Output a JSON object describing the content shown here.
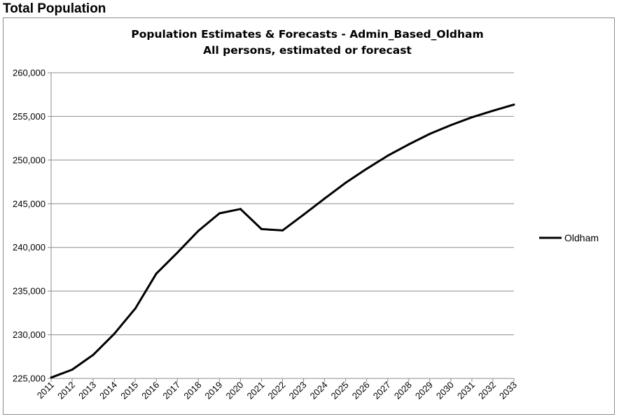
{
  "page": {
    "heading": "Total Population"
  },
  "chart_data": {
    "type": "line",
    "title": "Population  Estimates & Forecasts -  Admin_Based_Oldham",
    "subtitle": "All persons, estimated or forecast",
    "xlabel": "",
    "ylabel": "",
    "x": [
      "2011",
      "2012",
      "2013",
      "2014",
      "2015",
      "2016",
      "2017",
      "2018",
      "2019",
      "2020",
      "2021",
      "2022",
      "2023",
      "2024",
      "2025",
      "2026",
      "2027",
      "2028",
      "2029",
      "2030",
      "2031",
      "2032",
      "2033"
    ],
    "series": [
      {
        "name": "Oldham",
        "color": "#000000",
        "values": [
          225100,
          226000,
          227700,
          230100,
          233000,
          237000,
          239400,
          241900,
          243900,
          244400,
          242100,
          241950,
          243750,
          245600,
          247400,
          249000,
          250500,
          251800,
          253000,
          254000,
          254900,
          255650,
          256350
        ]
      }
    ],
    "ylim": [
      225000,
      260000
    ],
    "yticks": [
      225000,
      230000,
      235000,
      240000,
      245000,
      250000,
      255000,
      260000
    ],
    "ytick_labels": [
      "225,000",
      "230,000",
      "235,000",
      "240,000",
      "245,000",
      "250,000",
      "255,000",
      "260,000"
    ],
    "grid": "horizontal",
    "legend_position": "right"
  }
}
